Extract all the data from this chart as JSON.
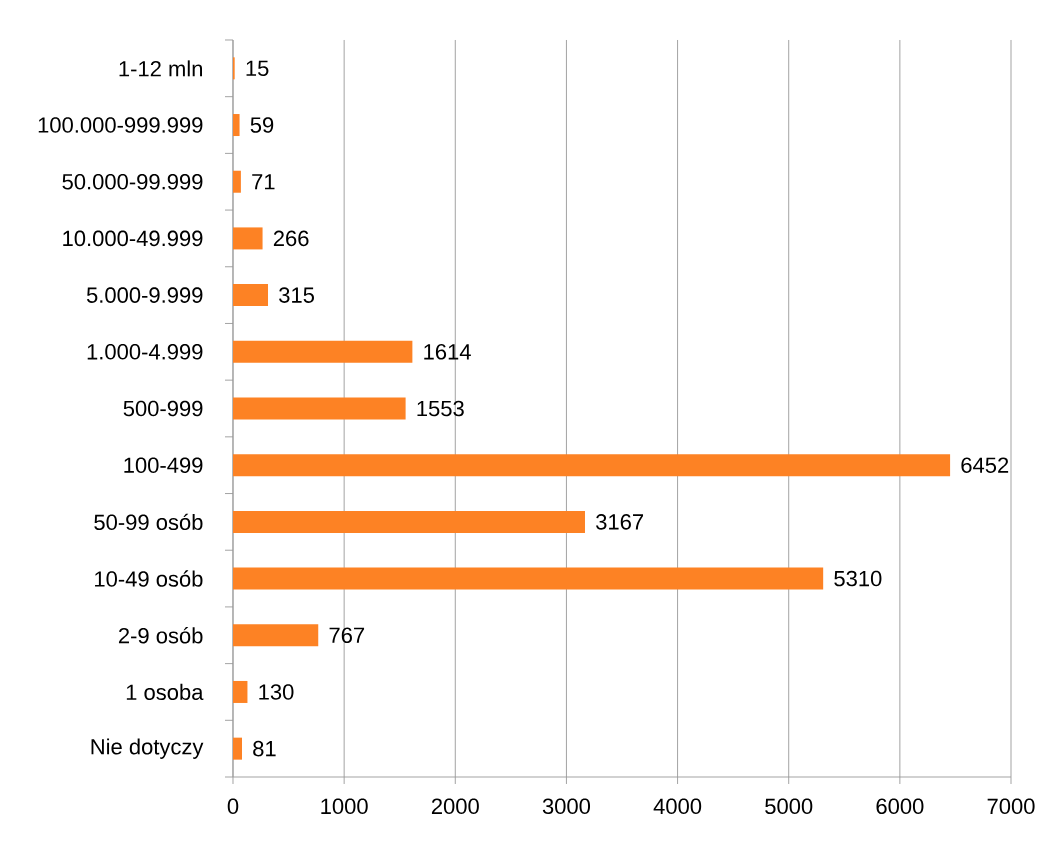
{
  "chart_data": {
    "type": "bar",
    "orientation": "horizontal",
    "categories": [
      "1-12 mln",
      "100.000-999.999",
      "50.000-99.999",
      "10.000-49.999",
      "5.000-9.999",
      "1.000-4.999",
      "500-999",
      "100-499",
      "50-99 osób",
      "10-49 osób",
      "2-9 osób",
      "1 osoba",
      "Nie dotyczy"
    ],
    "values": [
      15,
      59,
      71,
      266,
      315,
      1614,
      1553,
      6452,
      3167,
      5310,
      767,
      130,
      81
    ],
    "color": "#fd8224",
    "xlim": [
      0,
      7000
    ],
    "xticks": [
      0,
      1000,
      2000,
      3000,
      4000,
      5000,
      6000,
      7000
    ],
    "grid": "x",
    "data_labels": true
  }
}
